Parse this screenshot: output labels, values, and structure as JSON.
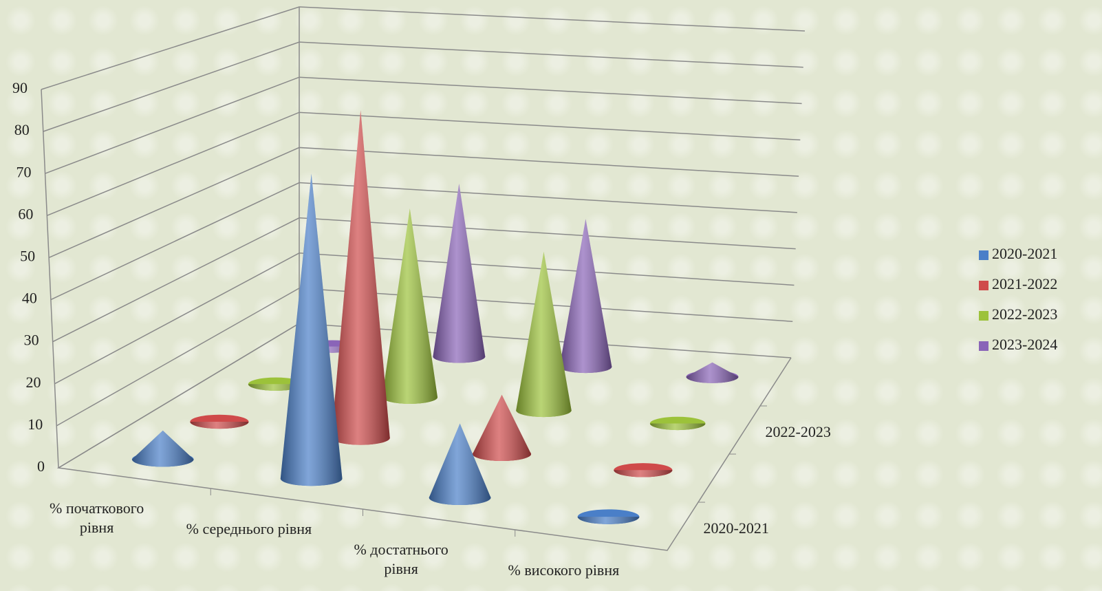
{
  "chart_data": {
    "type": "cone3d",
    "categories": [
      "% початкового рівня",
      "% середнього рівня",
      "% достатнього рівня",
      "% високого рівня"
    ],
    "series": [
      {
        "name": "2020-2021",
        "color": "#4a7fc8",
        "values": [
          7,
          74,
          18,
          0
        ]
      },
      {
        "name": "2021-2022",
        "color": "#cf4a4a",
        "values": [
          0,
          83,
          15,
          0
        ]
      },
      {
        "name": "2022-2023",
        "color": "#9cc23a",
        "values": [
          0,
          50,
          42,
          0
        ]
      },
      {
        "name": "2023-2024",
        "color": "#8a64b8",
        "values": [
          0,
          48,
          41,
          4
        ]
      }
    ],
    "depth_ticks": [
      0,
      2
    ],
    "ylim": [
      0,
      90
    ],
    "yticks": [
      0,
      10,
      20,
      30,
      40,
      50,
      60,
      70,
      80,
      90
    ],
    "grid": true,
    "legend": "right"
  }
}
